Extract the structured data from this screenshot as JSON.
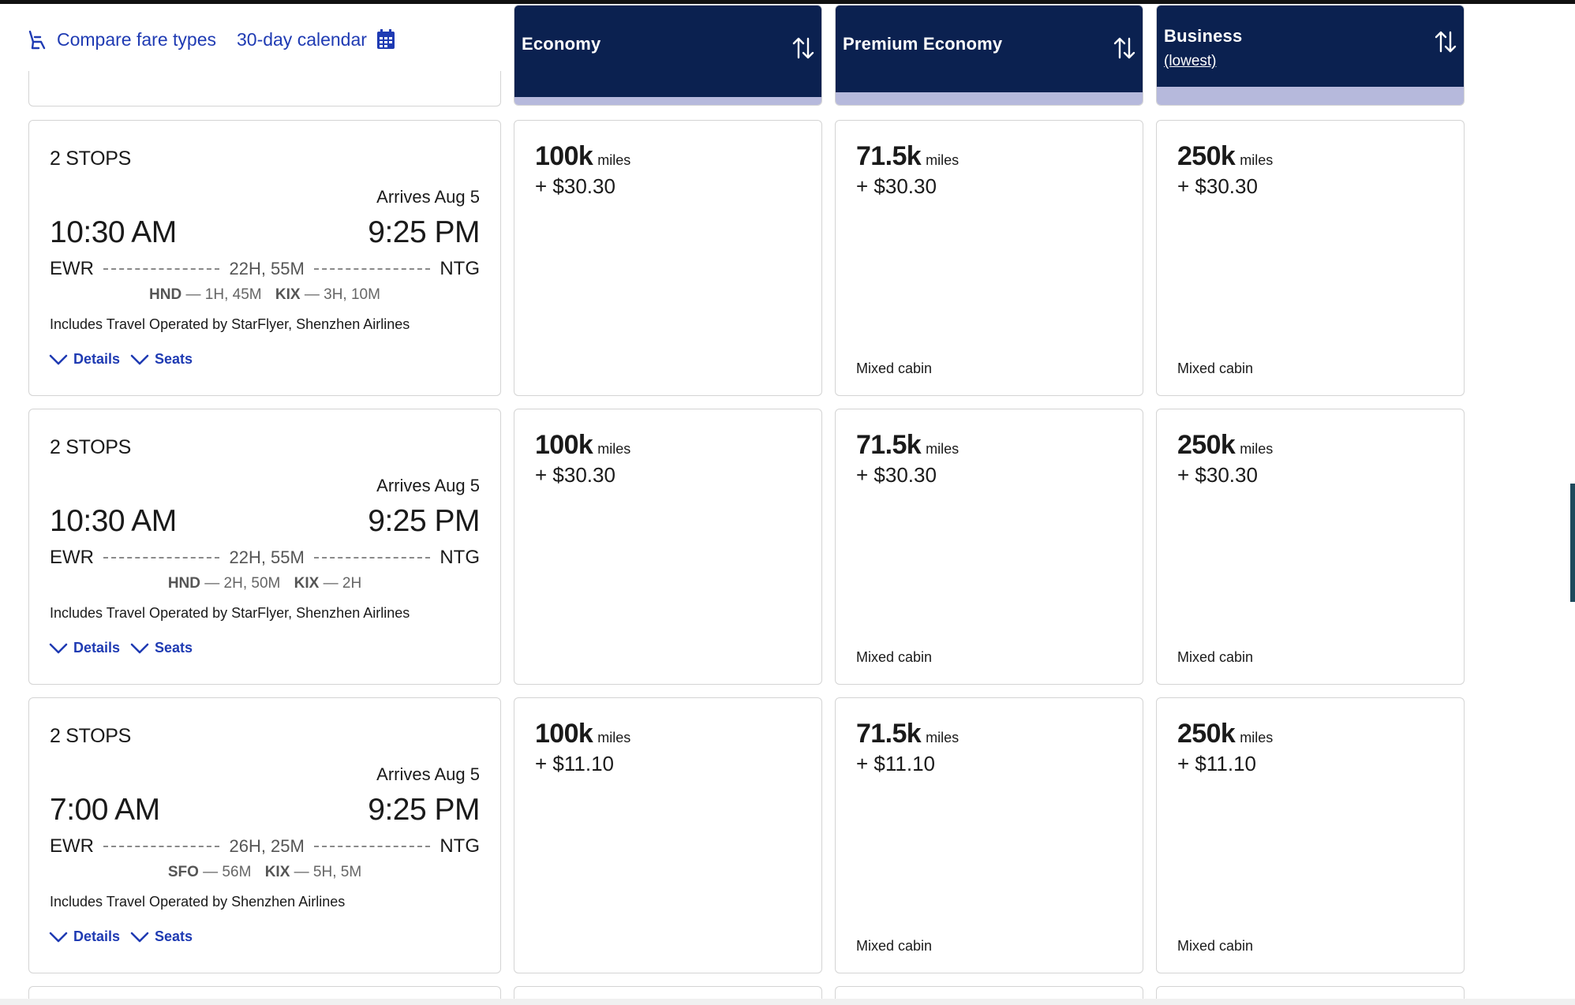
{
  "toolbar": {
    "compare_label": "Compare fare types",
    "calendar_label": "30-day calendar"
  },
  "columns": [
    {
      "label": "Economy",
      "sub": ""
    },
    {
      "label": "Premium Economy",
      "sub": ""
    },
    {
      "label": "Business",
      "sub": "(lowest)"
    }
  ],
  "colors": {
    "header_bg": "#0b2150",
    "header_bar": "#b6b9dc",
    "link": "#1f3bb3"
  },
  "flights": [
    {
      "stops": "2 STOPS",
      "arrives": "Arrives Aug 5",
      "depart_time": "10:30 AM",
      "arrive_time": "9:25 PM",
      "origin": "EWR",
      "destination": "NTG",
      "duration": "22H, 55M",
      "layovers": [
        {
          "code": "HND",
          "time": "— 1H, 45M"
        },
        {
          "code": "KIX",
          "time": "— 3H, 10M"
        }
      ],
      "operated": "Includes Travel Operated by StarFlyer, Shenzhen Airlines",
      "details_label": "Details",
      "seats_label": "Seats",
      "fares": [
        {
          "miles": "100k",
          "unit": "miles",
          "cash": "+ $30.30",
          "note": ""
        },
        {
          "miles": "71.5k",
          "unit": "miles",
          "cash": "+ $30.30",
          "note": "Mixed cabin"
        },
        {
          "miles": "250k",
          "unit": "miles",
          "cash": "+ $30.30",
          "note": "Mixed cabin"
        }
      ]
    },
    {
      "stops": "2 STOPS",
      "arrives": "Arrives Aug 5",
      "depart_time": "10:30 AM",
      "arrive_time": "9:25 PM",
      "origin": "EWR",
      "destination": "NTG",
      "duration": "22H, 55M",
      "layovers": [
        {
          "code": "HND",
          "time": "— 2H, 50M"
        },
        {
          "code": "KIX",
          "time": "— 2H"
        }
      ],
      "operated": "Includes Travel Operated by StarFlyer, Shenzhen Airlines",
      "details_label": "Details",
      "seats_label": "Seats",
      "fares": [
        {
          "miles": "100k",
          "unit": "miles",
          "cash": "+ $30.30",
          "note": ""
        },
        {
          "miles": "71.5k",
          "unit": "miles",
          "cash": "+ $30.30",
          "note": "Mixed cabin"
        },
        {
          "miles": "250k",
          "unit": "miles",
          "cash": "+ $30.30",
          "note": "Mixed cabin"
        }
      ]
    },
    {
      "stops": "2 STOPS",
      "arrives": "Arrives Aug 5",
      "depart_time": "7:00 AM",
      "arrive_time": "9:25 PM",
      "origin": "EWR",
      "destination": "NTG",
      "duration": "26H, 25M",
      "layovers": [
        {
          "code": "SFO",
          "time": "— 56M"
        },
        {
          "code": "KIX",
          "time": "— 5H, 5M"
        }
      ],
      "operated": "Includes Travel Operated by Shenzhen Airlines",
      "details_label": "Details",
      "seats_label": "Seats",
      "fares": [
        {
          "miles": "100k",
          "unit": "miles",
          "cash": "+ $11.10",
          "note": ""
        },
        {
          "miles": "71.5k",
          "unit": "miles",
          "cash": "+ $11.10",
          "note": "Mixed cabin"
        },
        {
          "miles": "250k",
          "unit": "miles",
          "cash": "+ $11.10",
          "note": "Mixed cabin"
        }
      ]
    }
  ]
}
